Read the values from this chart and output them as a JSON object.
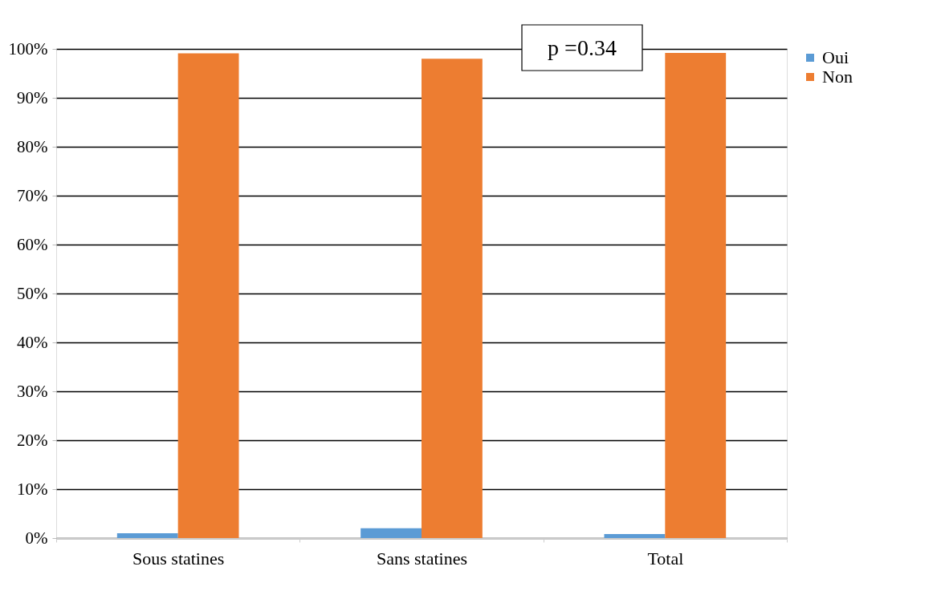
{
  "chart_data": {
    "type": "bar",
    "categories": [
      "Sous statines",
      "Sans statines",
      "Total"
    ],
    "series": [
      {
        "name": "Oui",
        "color": "#5b9bd5",
        "values": [
          1,
          2,
          0.8
        ]
      },
      {
        "name": "Non",
        "color": "#ed7d31",
        "values": [
          99.1,
          98,
          99.2
        ]
      }
    ],
    "ylim": [
      0,
      100
    ],
    "yticks": [
      {
        "value": 0,
        "label": "0%"
      },
      {
        "value": 10,
        "label": "10%"
      },
      {
        "value": 20,
        "label": "20%"
      },
      {
        "value": 30,
        "label": "30%"
      },
      {
        "value": 40,
        "label": "40%"
      },
      {
        "value": 50,
        "label": "50%"
      },
      {
        "value": 60,
        "label": "60%"
      },
      {
        "value": 70,
        "label": "70%"
      },
      {
        "value": 80,
        "label": "80%"
      },
      {
        "value": 90,
        "label": "90%"
      },
      {
        "value": 100,
        "label": "100%"
      }
    ],
    "grid": "y",
    "legend": "right",
    "annotations": [
      "p =0.34"
    ]
  }
}
